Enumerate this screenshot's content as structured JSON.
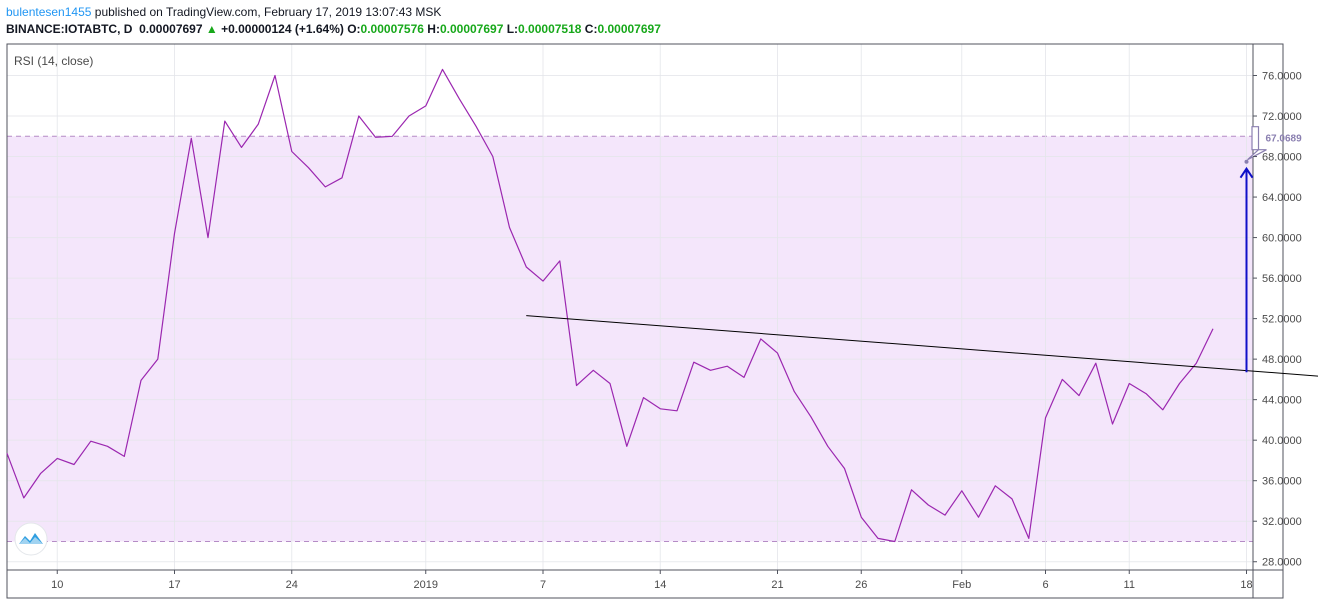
{
  "header": {
    "user": "bulentesen1455",
    "published_text": "published on TradingView.com, February 17, 2019 13:07:43 MSK",
    "symbol_label": "BINANCE:IOTABTC, D",
    "price": "0.00007697",
    "change": "+0.00000124 (+1.64%)",
    "o_label": "O:",
    "o_value": "0.00007576",
    "h_label": "H:",
    "h_value": "0.00007697",
    "l_label": "L:",
    "l_value": "0.00007518",
    "c_label": "C:",
    "c_value": "0.00007697"
  },
  "colors": {
    "rsi_line": "#9b27b0",
    "band_fill": "#f4e6fb",
    "band_line": "#b58cc6",
    "trend_line": "#000000",
    "arrow": "#0f0fc8",
    "price_up": "#17a81a",
    "username": "#2196f3"
  },
  "chart_data": {
    "type": "line",
    "title": "RSI (14, close)",
    "ylim": [
      27,
      78
    ],
    "y_ticks": [
      "76.0000",
      "72.0000",
      "68.0000",
      "64.0000",
      "60.0000",
      "56.0000",
      "52.0000",
      "48.0000",
      "44.0000",
      "40.0000",
      "36.0000",
      "32.0000",
      "28.0000"
    ],
    "x_tick_labels": [
      {
        "label": "10",
        "x": 3
      },
      {
        "label": "17",
        "x": 10
      },
      {
        "label": "24",
        "x": 17
      },
      {
        "label": "2019",
        "x": 25
      },
      {
        "label": "7",
        "x": 32
      },
      {
        "label": "14",
        "x": 39
      },
      {
        "label": "21",
        "x": 46
      },
      {
        "label": "26",
        "x": 51
      },
      {
        "label": "Feb",
        "x": 57
      },
      {
        "label": "6",
        "x": 62
      },
      {
        "label": "11",
        "x": 67
      },
      {
        "label": "18",
        "x": 74
      }
    ],
    "x_max": 78.5,
    "bands": {
      "upper": 70,
      "lower": 30
    },
    "grid": true,
    "series": [
      {
        "values": [
          [
            0,
            38.7
          ],
          [
            1,
            34.3
          ],
          [
            2,
            36.7
          ],
          [
            3,
            38.2
          ],
          [
            4,
            37.6
          ],
          [
            5,
            39.9
          ],
          [
            6,
            39.4
          ],
          [
            7,
            38.4
          ],
          [
            8,
            45.9
          ],
          [
            9,
            48.0
          ],
          [
            10,
            60.4
          ],
          [
            11,
            69.8
          ],
          [
            12,
            60.0
          ],
          [
            13,
            71.5
          ],
          [
            14,
            68.9
          ],
          [
            15,
            71.2
          ],
          [
            16,
            76.0
          ],
          [
            17,
            68.5
          ],
          [
            18,
            66.9
          ],
          [
            19,
            65.0
          ],
          [
            20,
            65.9
          ],
          [
            21,
            72.0
          ],
          [
            22,
            69.9
          ],
          [
            23,
            70.0
          ],
          [
            24,
            72.0
          ],
          [
            25,
            73.0
          ],
          [
            26,
            76.6
          ],
          [
            27,
            73.7
          ],
          [
            28,
            71.0
          ],
          [
            29,
            68.0
          ],
          [
            30,
            61.0
          ],
          [
            31,
            57.1
          ],
          [
            32,
            55.7
          ],
          [
            33,
            57.7
          ],
          [
            34,
            45.4
          ],
          [
            35,
            46.9
          ],
          [
            36,
            45.6
          ],
          [
            37,
            39.4
          ],
          [
            38,
            44.2
          ],
          [
            39,
            43.1
          ],
          [
            40,
            42.9
          ],
          [
            41,
            47.7
          ],
          [
            42,
            46.9
          ],
          [
            43,
            47.3
          ],
          [
            44,
            46.2
          ],
          [
            45,
            50.0
          ],
          [
            46,
            48.6
          ],
          [
            47,
            44.8
          ],
          [
            48,
            42.3
          ],
          [
            49,
            39.4
          ],
          [
            50,
            37.2
          ],
          [
            51,
            32.4
          ],
          [
            52,
            30.3
          ],
          [
            53,
            30.0
          ],
          [
            54,
            35.1
          ],
          [
            55,
            33.6
          ],
          [
            56,
            32.6
          ],
          [
            57,
            35.0
          ],
          [
            58,
            32.4
          ],
          [
            59,
            35.5
          ],
          [
            60,
            34.2
          ],
          [
            61,
            30.3
          ],
          [
            62,
            42.2
          ],
          [
            63,
            46.0
          ],
          [
            64,
            44.4
          ],
          [
            65,
            47.6
          ],
          [
            66,
            41.6
          ],
          [
            67,
            45.6
          ],
          [
            68,
            44.6
          ],
          [
            69,
            43.0
          ],
          [
            70,
            45.6
          ],
          [
            71,
            47.6
          ],
          [
            72,
            51.0
          ]
        ]
      }
    ],
    "trendline": {
      "x": [
        31,
        78.5
      ],
      "y": [
        52.3,
        46.3
      ]
    },
    "arrow": {
      "x": 74,
      "y_from": 46.7,
      "y_to": 66.8
    },
    "callout_label": "67.0689"
  }
}
